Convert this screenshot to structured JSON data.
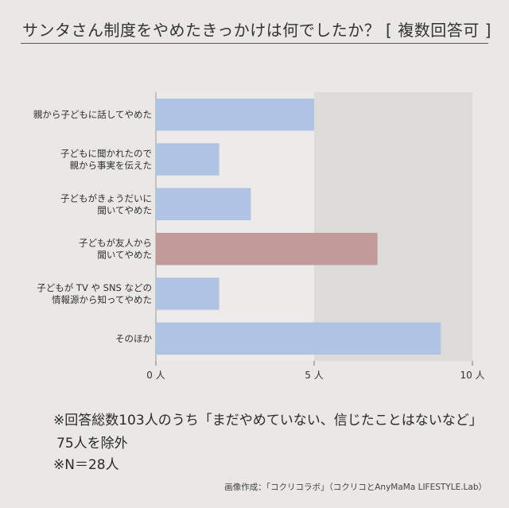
{
  "header": {
    "title": "サンタさん制度をやめたきっかけは何でしたか？ [ 複数回答可 ]"
  },
  "chart_data": {
    "type": "bar",
    "orientation": "horizontal",
    "categories": [
      [
        "親から子どもに話してやめた"
      ],
      [
        "子どもに聞かれたので",
        "親から事実を伝えた"
      ],
      [
        "子どもがきょうだいに",
        "聞いてやめた"
      ],
      [
        "子どもが友人から",
        "聞いてやめた"
      ],
      [
        "子どもが TV や SNS などの",
        "情報源から知ってやめた"
      ],
      [
        "そのほか"
      ]
    ],
    "values": [
      5,
      2,
      3,
      7,
      2,
      9
    ],
    "colors": [
      "#b0c3e2",
      "#b0c3e2",
      "#b0c3e2",
      "#c19a9a",
      "#b0c3e2",
      "#b0c3e2"
    ],
    "xlim": [
      0,
      10
    ],
    "xticks": [
      {
        "value": 0,
        "label": "0 人"
      },
      {
        "value": 5,
        "label": "5 人"
      },
      {
        "value": 10,
        "label": "10 人"
      }
    ],
    "title": "",
    "xlabel": "",
    "ylabel": ""
  },
  "notes": {
    "line1": "※回答総数103人のうち「まだやめていない、信じたことはないなど」",
    "line2": "75人を除外",
    "line3": "※N＝28人"
  },
  "credit": "画像作成：「コクリコラボ」（コクリコとAnyMaMa LIFESTYLE.Lab）"
}
